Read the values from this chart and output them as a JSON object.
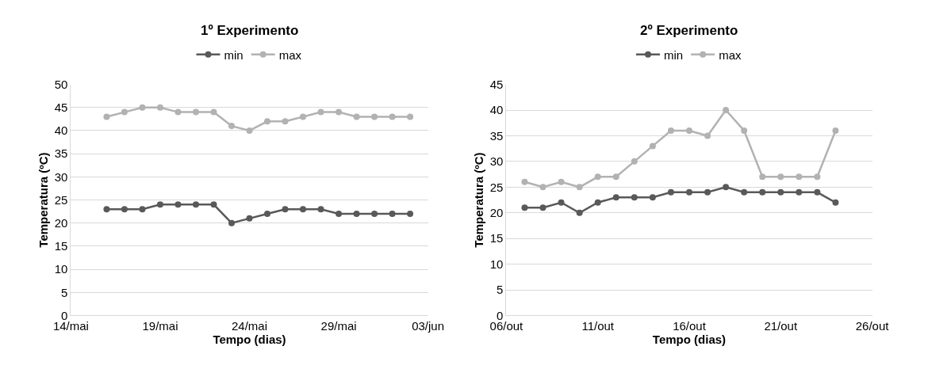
{
  "chart_data": [
    {
      "type": "line",
      "title": "1º Experimento",
      "xlabel": "Tempo (dias)",
      "ylabel": "Temperatura (ºC)",
      "x": [
        "--05-16",
        "--05-17",
        "--05-18",
        "--05-19",
        "--05-20",
        "--05-21",
        "--05-22",
        "--05-23",
        "--05-24",
        "--05-25",
        "--05-26",
        "--05-27",
        "--05-28",
        "--05-29",
        "--05-30",
        "--05-31",
        "--06-01",
        "--06-02"
      ],
      "series": [
        {
          "name": "min",
          "color": "#595959",
          "values": [
            23,
            23,
            23,
            24,
            24,
            24,
            24,
            20,
            21,
            22,
            23,
            23,
            23,
            22,
            22,
            22,
            22,
            22
          ]
        },
        {
          "name": "max",
          "color": "#b2b2b2",
          "values": [
            43,
            44,
            45,
            45,
            44,
            44,
            44,
            41,
            40,
            42,
            42,
            43,
            44,
            44,
            43,
            43,
            43,
            43
          ]
        }
      ],
      "xlim": [
        "--05-14",
        "--06-03"
      ],
      "xticks": [
        {
          "value": "--05-14",
          "label": "14/mai"
        },
        {
          "value": "--05-19",
          "label": "19/mai"
        },
        {
          "value": "--05-24",
          "label": "24/mai"
        },
        {
          "value": "--05-29",
          "label": "29/mai"
        },
        {
          "value": "--06-03",
          "label": "03/jun"
        }
      ],
      "ylim": [
        0,
        50
      ],
      "yticks": [
        0,
        5,
        10,
        15,
        20,
        25,
        30,
        35,
        40,
        45,
        50
      ],
      "grid": "y",
      "legend": "top",
      "marker": "circle",
      "line_style": "solid"
    },
    {
      "type": "line",
      "title": "2º Experimento",
      "xlabel": "Tempo (dias)",
      "ylabel": "Temperatura (ºC)",
      "x": [
        "--10-07",
        "--10-08",
        "--10-09",
        "--10-10",
        "--10-11",
        "--10-12",
        "--10-13",
        "--10-14",
        "--10-15",
        "--10-16",
        "--10-17",
        "--10-18",
        "--10-19",
        "--10-20",
        "--10-21",
        "--10-22",
        "--10-23",
        "--10-24"
      ],
      "series": [
        {
          "name": "min",
          "color": "#595959",
          "values": [
            21,
            21,
            22,
            20,
            22,
            23,
            23,
            23,
            24,
            24,
            24,
            25,
            24,
            24,
            24,
            24,
            24,
            22
          ]
        },
        {
          "name": "max",
          "color": "#b2b2b2",
          "values": [
            26,
            25,
            26,
            25,
            27,
            27,
            30,
            33,
            36,
            36,
            35,
            40,
            36,
            27,
            27,
            27,
            27,
            36
          ]
        }
      ],
      "xlim": [
        "--10-06",
        "--10-26"
      ],
      "xticks": [
        {
          "value": "--10-06",
          "label": "06/out"
        },
        {
          "value": "--10-11",
          "label": "11/out"
        },
        {
          "value": "--10-16",
          "label": "16/out"
        },
        {
          "value": "--10-21",
          "label": "21/out"
        },
        {
          "value": "--10-26",
          "label": "26/out"
        }
      ],
      "ylim": [
        0,
        45
      ],
      "yticks": [
        0,
        5,
        10,
        15,
        20,
        25,
        30,
        35,
        40,
        45
      ],
      "grid": "y",
      "legend": "top",
      "marker": "circle",
      "line_style": "solid"
    }
  ]
}
